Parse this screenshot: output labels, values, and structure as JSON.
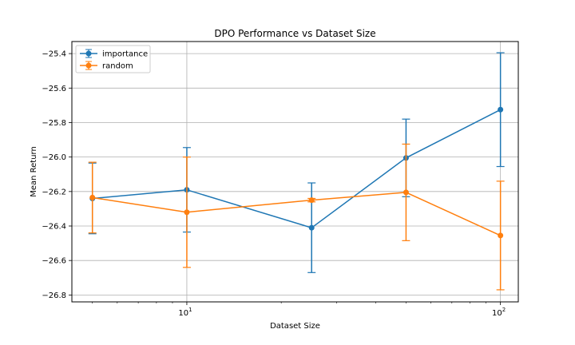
{
  "chart_data": {
    "type": "line",
    "title": "DPO Performance vs Dataset Size",
    "xlabel": "Dataset Size",
    "ylabel": "Mean Return",
    "xscale": "log",
    "xlim": [
      4.3,
      114
    ],
    "ylim": [
      -26.84,
      -25.33
    ],
    "x_ticks": [
      {
        "value": 10,
        "base": "10",
        "exp": "1"
      },
      {
        "value": 100,
        "base": "10",
        "exp": "2"
      }
    ],
    "y_ticks": [
      {
        "value": -25.4,
        "label": "−25.4"
      },
      {
        "value": -25.6,
        "label": "−25.6"
      },
      {
        "value": -25.8,
        "label": "−25.8"
      },
      {
        "value": -26.0,
        "label": "−26.0"
      },
      {
        "value": -26.2,
        "label": "−26.2"
      },
      {
        "value": -26.4,
        "label": "−26.4"
      },
      {
        "value": -26.6,
        "label": "−26.6"
      },
      {
        "value": -26.8,
        "label": "−26.8"
      }
    ],
    "grid": true,
    "legend": "upper-left",
    "series": [
      {
        "name": "importance",
        "color": "#1f77b4",
        "x": [
          5,
          10,
          25,
          50,
          100
        ],
        "y": [
          -26.24,
          -26.19,
          -26.41,
          -26.005,
          -25.725
        ],
        "yerr": [
          0.205,
          0.245,
          0.26,
          0.225,
          0.33
        ]
      },
      {
        "name": "random",
        "color": "#ff7f0e",
        "x": [
          5,
          10,
          25,
          50,
          100
        ],
        "y": [
          -26.235,
          -26.32,
          -26.25,
          -26.205,
          -26.455
        ],
        "yerr": [
          0.205,
          0.32,
          0.01,
          0.28,
          0.315
        ]
      }
    ]
  }
}
